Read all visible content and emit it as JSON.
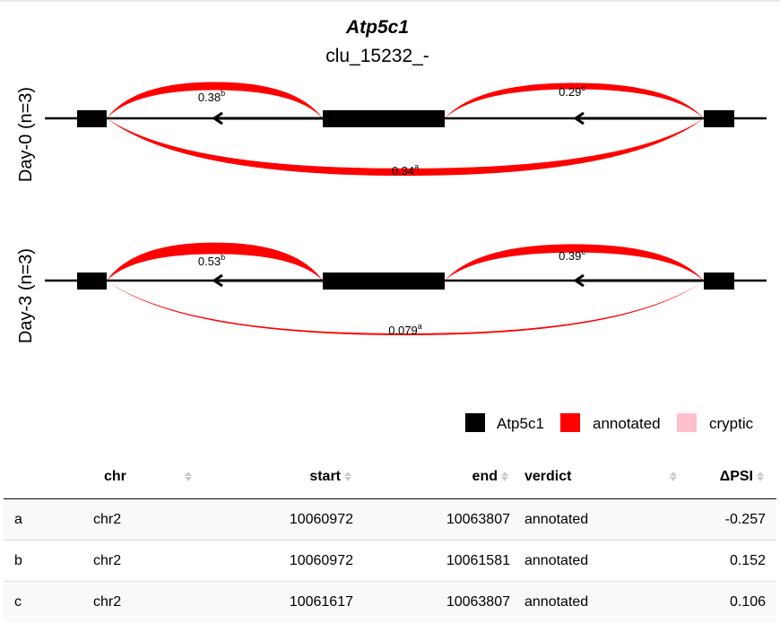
{
  "plot": {
    "title": "Atp5c1",
    "subtitle": "clu_15232_-",
    "tracks": [
      {
        "label": "Day-0 (n=3)",
        "junctions": [
          {
            "id": "b",
            "value": "0.38",
            "weight": 0.38
          },
          {
            "id": "c",
            "value": "0.29",
            "weight": 0.29
          },
          {
            "id": "a",
            "value": "0.34",
            "weight": 0.34
          }
        ]
      },
      {
        "label": "Day-3 (n=3)",
        "junctions": [
          {
            "id": "b",
            "value": "0.53",
            "weight": 0.53
          },
          {
            "id": "c",
            "value": "0.39",
            "weight": 0.39
          },
          {
            "id": "a",
            "value": "0.079",
            "weight": 0.079
          }
        ]
      }
    ],
    "legend": [
      {
        "label": "Atp5c1",
        "color": "#000000"
      },
      {
        "label": "annotated",
        "color": "#ff0000"
      },
      {
        "label": "cryptic",
        "color": "#ffc0cb"
      }
    ]
  },
  "table": {
    "headers": {
      "chr": "chr",
      "start": "start",
      "end": "end",
      "verdict": "verdict",
      "dpsi": "ΔPSI"
    },
    "rows": [
      {
        "idx": "a",
        "chr": "chr2",
        "start": "10060972",
        "end": "10063807",
        "verdict": "annotated",
        "dpsi": "-0.257"
      },
      {
        "idx": "b",
        "chr": "chr2",
        "start": "10060972",
        "end": "10061581",
        "verdict": "annotated",
        "dpsi": "0.152"
      },
      {
        "idx": "c",
        "chr": "chr2",
        "start": "10061617",
        "end": "10063807",
        "verdict": "annotated",
        "dpsi": "0.106"
      }
    ]
  }
}
